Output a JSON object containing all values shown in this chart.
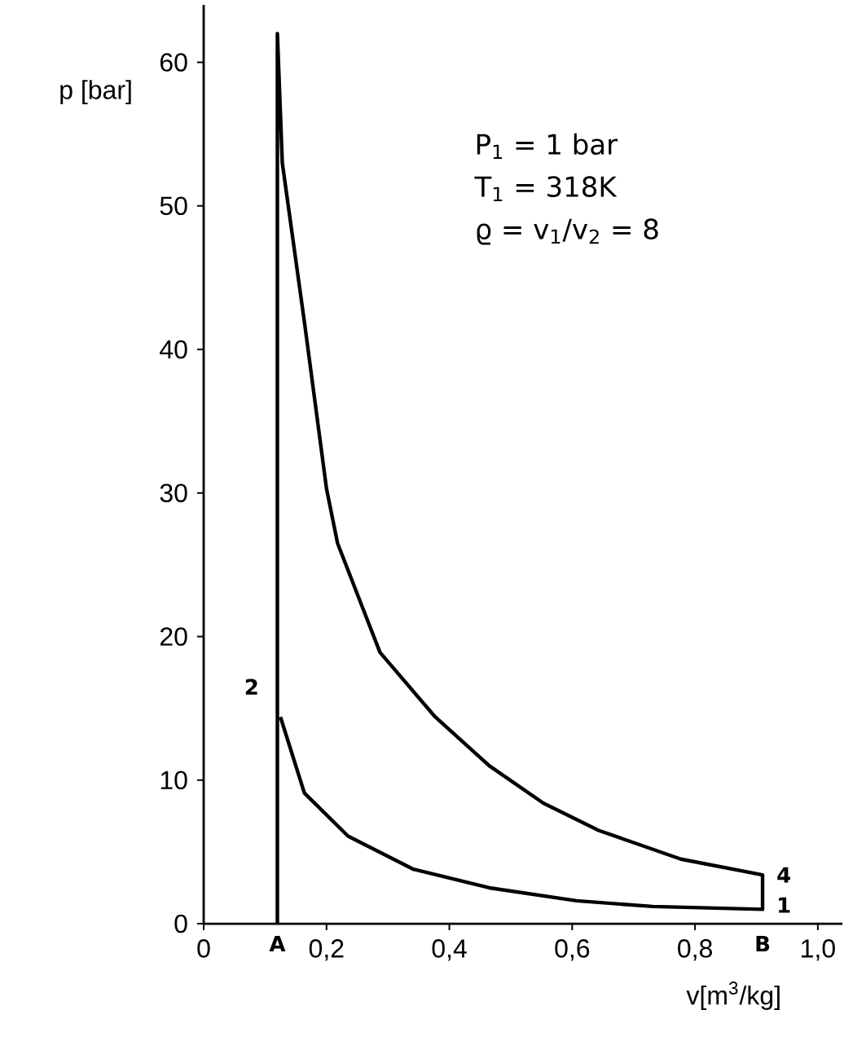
{
  "chart_data": {
    "type": "line",
    "xlabel": "v[m$^{3}$/kg]",
    "ylabel": "p [bar]",
    "xlim": [
      0,
      1.04
    ],
    "ylim": [
      0,
      64
    ],
    "xticks": [
      0,
      {
        "value": 0.2,
        "label": "0,2"
      },
      {
        "value": 0.4,
        "label": "0,4"
      },
      {
        "value": 0.6,
        "label": "0,6"
      },
      {
        "value": 0.8,
        "label": "0,8"
      },
      {
        "value": 1.0,
        "label": "1,0"
      }
    ],
    "yticks": [
      0,
      10,
      20,
      30,
      40,
      50,
      60
    ],
    "series": [
      {
        "color": "#000000",
        "x": [
          0.12,
          0.12,
          0.128,
          0.165,
          0.2,
          0.218,
          0.287,
          0.377,
          0.465,
          0.553,
          0.643,
          0.777,
          0.91,
          0.91,
          0.731,
          0.607,
          0.465,
          0.341,
          0.235,
          0.164,
          0.125
        ],
        "values": [
          0,
          62,
          53,
          41.6,
          30.3,
          26.5,
          18.9,
          14.4,
          11,
          8.4,
          6.5,
          4.5,
          3.4,
          1.0,
          1.2,
          1.6,
          2.5,
          3.8,
          6.1,
          9.1,
          14.4
        ]
      }
    ],
    "grid": false,
    "marker": "none",
    "line_style": "solid",
    "annotations": [
      "P$_{1}$ = 1 bar",
      "T$_{1}$ = 318K",
      "ϱ = v$_{1}$/v$_{2}$ = 8",
      {
        "text": "2",
        "x": 0.11,
        "y": 16.5
      },
      {
        "text": "4",
        "x": 0.91,
        "y": 3.4
      },
      {
        "text": "1",
        "x": 0.91,
        "y": 1.3
      },
      {
        "text": "A",
        "x": 0.12,
        "y": 0
      },
      {
        "text": "B",
        "x": 0.91,
        "y": 1.0
      }
    ]
  }
}
